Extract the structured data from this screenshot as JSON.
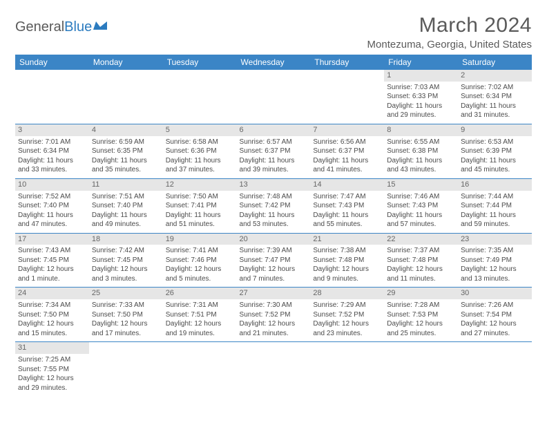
{
  "logo": {
    "part1": "General",
    "part2": "Blue"
  },
  "title": "March 2024",
  "location": "Montezuma, Georgia, United States",
  "dayHeaders": [
    "Sunday",
    "Monday",
    "Tuesday",
    "Wednesday",
    "Thursday",
    "Friday",
    "Saturday"
  ],
  "colors": {
    "headerBg": "#3b85c6",
    "dayBg": "#e6e6e6",
    "text": "#4a4a4a"
  },
  "weeks": [
    [
      null,
      null,
      null,
      null,
      null,
      {
        "d": "1",
        "sr": "7:03 AM",
        "ss": "6:33 PM",
        "dl1": "11 hours",
        "dl2": "and 29 minutes."
      },
      {
        "d": "2",
        "sr": "7:02 AM",
        "ss": "6:34 PM",
        "dl1": "11 hours",
        "dl2": "and 31 minutes."
      }
    ],
    [
      {
        "d": "3",
        "sr": "7:01 AM",
        "ss": "6:34 PM",
        "dl1": "11 hours",
        "dl2": "and 33 minutes."
      },
      {
        "d": "4",
        "sr": "6:59 AM",
        "ss": "6:35 PM",
        "dl1": "11 hours",
        "dl2": "and 35 minutes."
      },
      {
        "d": "5",
        "sr": "6:58 AM",
        "ss": "6:36 PM",
        "dl1": "11 hours",
        "dl2": "and 37 minutes."
      },
      {
        "d": "6",
        "sr": "6:57 AM",
        "ss": "6:37 PM",
        "dl1": "11 hours",
        "dl2": "and 39 minutes."
      },
      {
        "d": "7",
        "sr": "6:56 AM",
        "ss": "6:37 PM",
        "dl1": "11 hours",
        "dl2": "and 41 minutes."
      },
      {
        "d": "8",
        "sr": "6:55 AM",
        "ss": "6:38 PM",
        "dl1": "11 hours",
        "dl2": "and 43 minutes."
      },
      {
        "d": "9",
        "sr": "6:53 AM",
        "ss": "6:39 PM",
        "dl1": "11 hours",
        "dl2": "and 45 minutes."
      }
    ],
    [
      {
        "d": "10",
        "sr": "7:52 AM",
        "ss": "7:40 PM",
        "dl1": "11 hours",
        "dl2": "and 47 minutes."
      },
      {
        "d": "11",
        "sr": "7:51 AM",
        "ss": "7:40 PM",
        "dl1": "11 hours",
        "dl2": "and 49 minutes."
      },
      {
        "d": "12",
        "sr": "7:50 AM",
        "ss": "7:41 PM",
        "dl1": "11 hours",
        "dl2": "and 51 minutes."
      },
      {
        "d": "13",
        "sr": "7:48 AM",
        "ss": "7:42 PM",
        "dl1": "11 hours",
        "dl2": "and 53 minutes."
      },
      {
        "d": "14",
        "sr": "7:47 AM",
        "ss": "7:43 PM",
        "dl1": "11 hours",
        "dl2": "and 55 minutes."
      },
      {
        "d": "15",
        "sr": "7:46 AM",
        "ss": "7:43 PM",
        "dl1": "11 hours",
        "dl2": "and 57 minutes."
      },
      {
        "d": "16",
        "sr": "7:44 AM",
        "ss": "7:44 PM",
        "dl1": "11 hours",
        "dl2": "and 59 minutes."
      }
    ],
    [
      {
        "d": "17",
        "sr": "7:43 AM",
        "ss": "7:45 PM",
        "dl1": "12 hours",
        "dl2": "and 1 minute."
      },
      {
        "d": "18",
        "sr": "7:42 AM",
        "ss": "7:45 PM",
        "dl1": "12 hours",
        "dl2": "and 3 minutes."
      },
      {
        "d": "19",
        "sr": "7:41 AM",
        "ss": "7:46 PM",
        "dl1": "12 hours",
        "dl2": "and 5 minutes."
      },
      {
        "d": "20",
        "sr": "7:39 AM",
        "ss": "7:47 PM",
        "dl1": "12 hours",
        "dl2": "and 7 minutes."
      },
      {
        "d": "21",
        "sr": "7:38 AM",
        "ss": "7:48 PM",
        "dl1": "12 hours",
        "dl2": "and 9 minutes."
      },
      {
        "d": "22",
        "sr": "7:37 AM",
        "ss": "7:48 PM",
        "dl1": "12 hours",
        "dl2": "and 11 minutes."
      },
      {
        "d": "23",
        "sr": "7:35 AM",
        "ss": "7:49 PM",
        "dl1": "12 hours",
        "dl2": "and 13 minutes."
      }
    ],
    [
      {
        "d": "24",
        "sr": "7:34 AM",
        "ss": "7:50 PM",
        "dl1": "12 hours",
        "dl2": "and 15 minutes."
      },
      {
        "d": "25",
        "sr": "7:33 AM",
        "ss": "7:50 PM",
        "dl1": "12 hours",
        "dl2": "and 17 minutes."
      },
      {
        "d": "26",
        "sr": "7:31 AM",
        "ss": "7:51 PM",
        "dl1": "12 hours",
        "dl2": "and 19 minutes."
      },
      {
        "d": "27",
        "sr": "7:30 AM",
        "ss": "7:52 PM",
        "dl1": "12 hours",
        "dl2": "and 21 minutes."
      },
      {
        "d": "28",
        "sr": "7:29 AM",
        "ss": "7:52 PM",
        "dl1": "12 hours",
        "dl2": "and 23 minutes."
      },
      {
        "d": "29",
        "sr": "7:28 AM",
        "ss": "7:53 PM",
        "dl1": "12 hours",
        "dl2": "and 25 minutes."
      },
      {
        "d": "30",
        "sr": "7:26 AM",
        "ss": "7:54 PM",
        "dl1": "12 hours",
        "dl2": "and 27 minutes."
      }
    ],
    [
      {
        "d": "31",
        "sr": "7:25 AM",
        "ss": "7:55 PM",
        "dl1": "12 hours",
        "dl2": "and 29 minutes."
      },
      null,
      null,
      null,
      null,
      null,
      null
    ]
  ],
  "labels": {
    "sunrise": "Sunrise:",
    "sunset": "Sunset:",
    "daylight": "Daylight:"
  }
}
